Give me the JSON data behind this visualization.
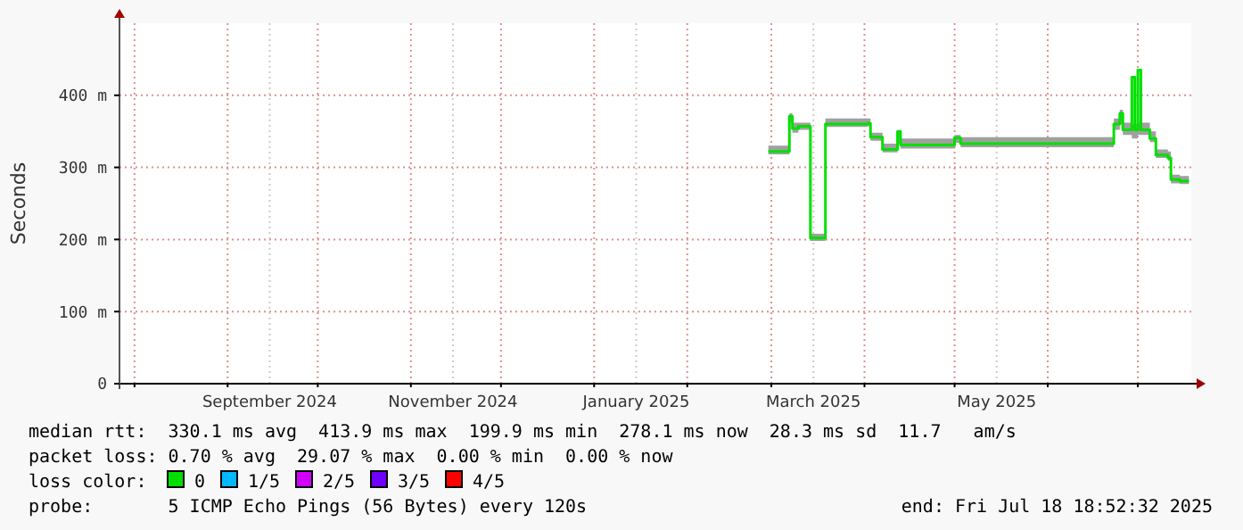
{
  "chart_data": {
    "type": "step",
    "ylabel": "Seconds",
    "legend_title": "loss color:",
    "legend": "bottom",
    "grid": true,
    "x": [
      "2025-02-28",
      "2025-03-06",
      "2025-03-07",
      "2025-03-08",
      "2025-03-10",
      "2025-03-13",
      "2025-03-14",
      "2025-03-18",
      "2025-03-19",
      "2025-04-02",
      "2025-04-03",
      "2025-04-07",
      "2025-04-12",
      "2025-04-13",
      "2025-05-01",
      "2025-05-03",
      "2025-06-19",
      "2025-06-23",
      "2025-06-25",
      "2025-06-26",
      "2025-06-29",
      "2025-06-30",
      "2025-07-01",
      "2025-07-02",
      "2025-07-05",
      "2025-07-07",
      "2025-07-11",
      "2025-07-12",
      "2025-07-15",
      "2025-07-18"
    ],
    "series": [
      {
        "name": "0",
        "color": "#00e000",
        "values": [
          322,
          322,
          371,
          354,
          357,
          357,
          202,
          202,
          360,
          361,
          342,
          325,
          350,
          331,
          341,
          333,
          333,
          360,
          375,
          352,
          425,
          352,
          435,
          352,
          340,
          317,
          313,
          283,
          281,
          281
        ],
        "lower": [
          318,
          318,
          362,
          348,
          352,
          352,
          198,
          198,
          356,
          357,
          337,
          321,
          333,
          326,
          334,
          328,
          328,
          352,
          360,
          345,
          340,
          340,
          345,
          345,
          335,
          313,
          309,
          278,
          277,
          277
        ],
        "upper": [
          330,
          330,
          375,
          362,
          362,
          362,
          208,
          208,
          368,
          368,
          348,
          333,
          350,
          340,
          345,
          342,
          342,
          368,
          380,
          362,
          360,
          360,
          362,
          362,
          350,
          325,
          322,
          290,
          288,
          288
        ]
      },
      {
        "name": "1/5",
        "color": "#00b8ff",
        "values": [
          null,
          null,
          null,
          null,
          null,
          null,
          null,
          null,
          null,
          null,
          null,
          null,
          null,
          null,
          null,
          null,
          null,
          null,
          null,
          null,
          null,
          null,
          null,
          null,
          null,
          null,
          null,
          null,
          null,
          null
        ]
      },
      {
        "name": "2/5",
        "color": "#d000ff",
        "values": [
          null,
          null,
          null,
          null,
          null,
          null,
          null,
          null,
          null,
          null,
          null,
          null,
          null,
          null,
          null,
          null,
          null,
          null,
          null,
          null,
          null,
          null,
          null,
          null,
          null,
          null,
          null,
          null,
          null,
          null
        ]
      },
      {
        "name": "3/5",
        "color": "#7000ff",
        "values": [
          null,
          null,
          null,
          null,
          null,
          null,
          null,
          null,
          null,
          null,
          null,
          null,
          null,
          null,
          null,
          null,
          null,
          null,
          null,
          null,
          null,
          null,
          null,
          null,
          null,
          null,
          null,
          null,
          null,
          null
        ]
      },
      {
        "name": "4/5",
        "color": "#ff0000",
        "values": [
          null,
          null,
          null,
          null,
          null,
          null,
          null,
          null,
          null,
          null,
          null,
          null,
          null,
          null,
          null,
          null,
          null,
          null,
          null,
          null,
          null,
          null,
          null,
          null,
          null,
          null,
          null,
          null,
          null,
          null
        ]
      }
    ],
    "xlim": [
      "2024-07-27",
      "2025-07-18T18:52"
    ],
    "xticks": [
      {
        "value": "2024-08-01",
        "label": null
      },
      {
        "value": "2024-09-01",
        "label": null
      },
      {
        "value": "2024-09-15",
        "label": "September 2024"
      },
      {
        "value": "2024-10-01",
        "label": null
      },
      {
        "value": "2024-11-01",
        "label": null
      },
      {
        "value": "2024-11-15",
        "label": "November 2024"
      },
      {
        "value": "2024-12-01",
        "label": null
      },
      {
        "value": "2025-01-01",
        "label": null
      },
      {
        "value": "2025-01-15",
        "label": "January 2025"
      },
      {
        "value": "2025-02-01",
        "label": null
      },
      {
        "value": "2025-03-01",
        "label": null
      },
      {
        "value": "2025-03-15",
        "label": "March 2025"
      },
      {
        "value": "2025-04-01",
        "label": null
      },
      {
        "value": "2025-05-01",
        "label": null
      },
      {
        "value": "2025-05-15",
        "label": "May 2025"
      },
      {
        "value": "2025-06-01",
        "label": null
      },
      {
        "value": "2025-07-01",
        "label": null
      }
    ],
    "ylim": [
      0,
      500
    ],
    "yticks": [
      0,
      {
        "value": 100,
        "label": "100 m"
      },
      {
        "value": 200,
        "label": "200 m"
      },
      {
        "value": 300,
        "label": "300 m"
      },
      {
        "value": 400,
        "label": "400 m"
      }
    ],
    "annotations": [
      "median rtt:  330.1 ms avg  413.9 ms max  199.9 ms min  278.1 ms now  28.3 ms sd  11.7   am/s",
      "packet loss: 0.70 % avg  29.07 % max  0.00 % min  0.00 % now",
      "probe:       5 ICMP Echo Pings (56 Bytes) every 120s",
      "end: Fri Jul 18 18:52:32 2025"
    ]
  }
}
